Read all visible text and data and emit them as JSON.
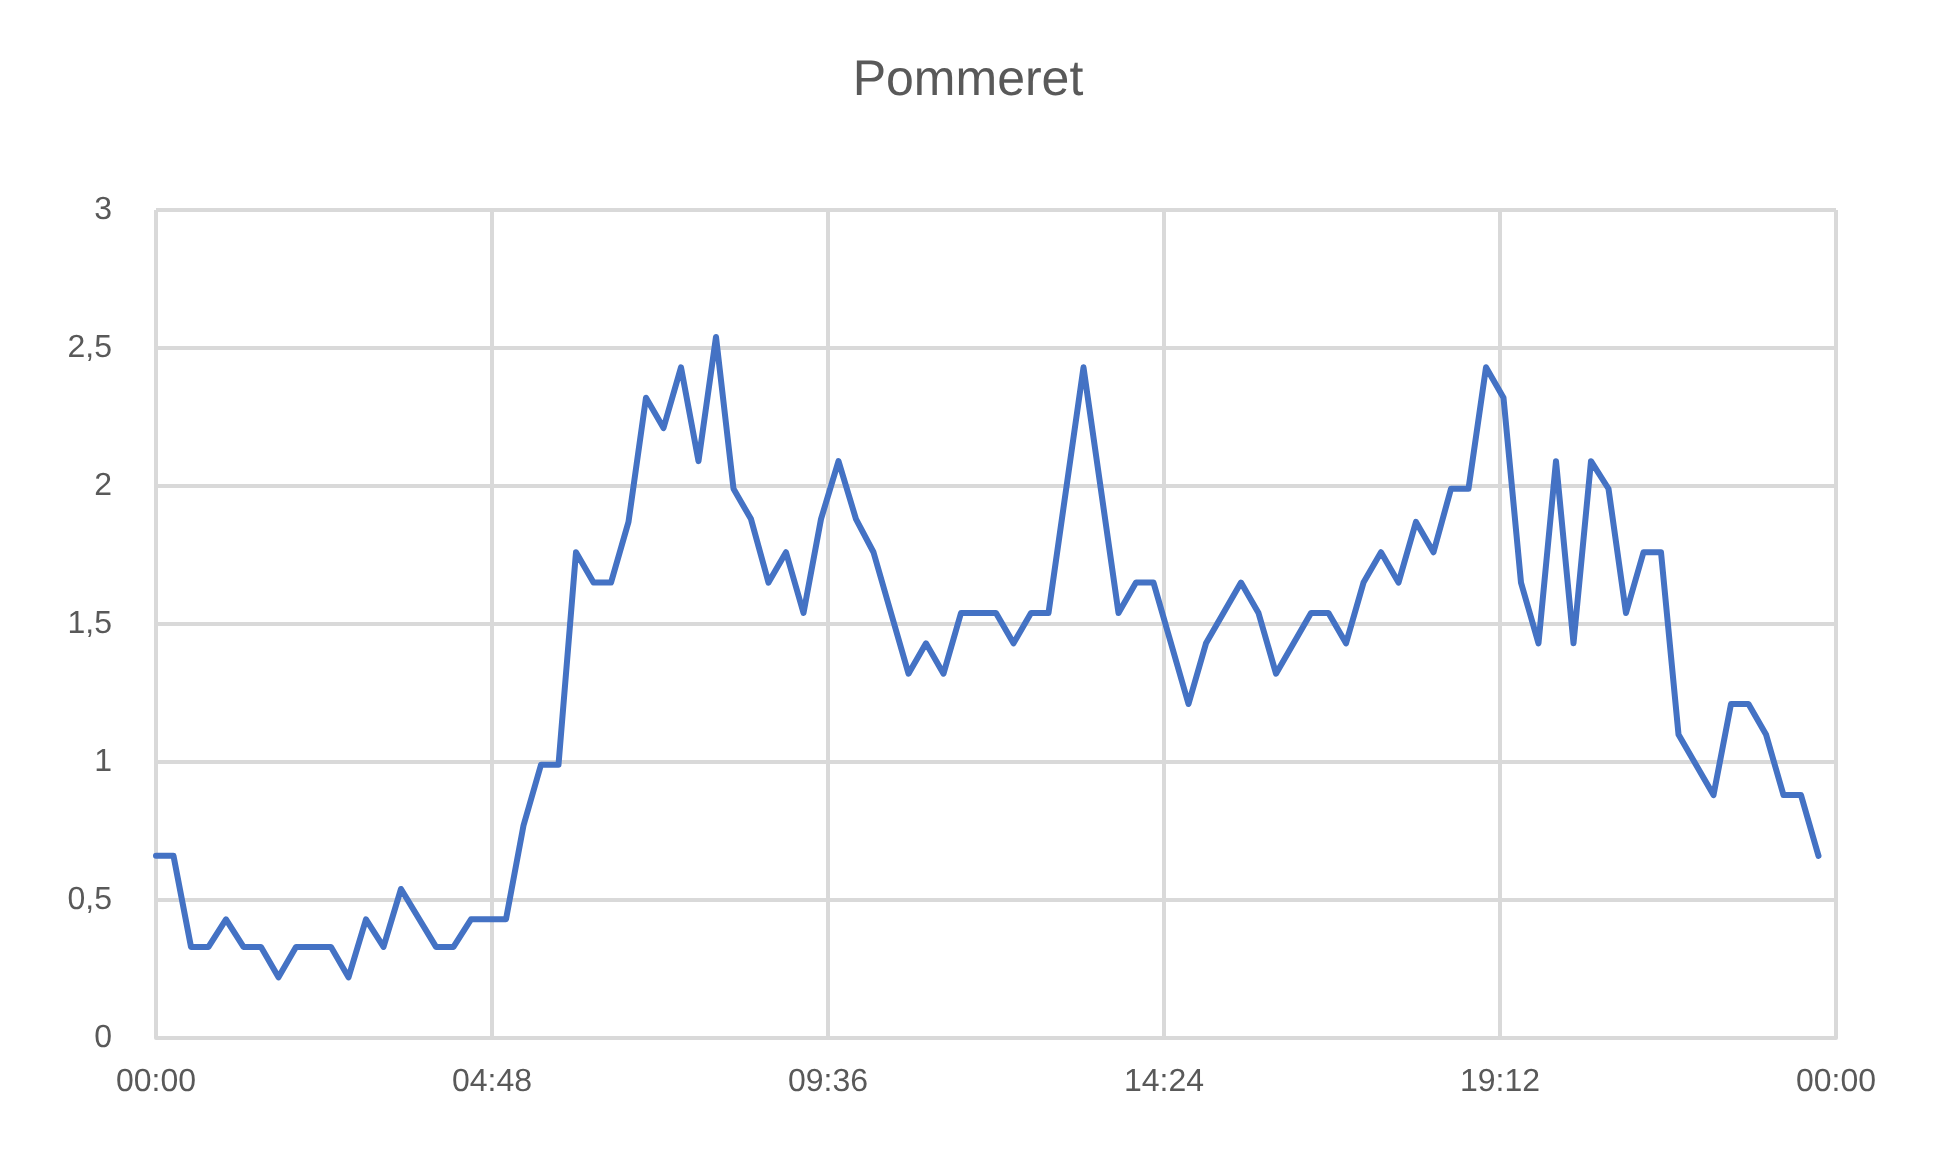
{
  "chart_data": {
    "type": "line",
    "title": "Pommeret",
    "x": [
      0,
      0.25,
      0.5,
      0.75,
      1,
      1.25,
      1.5,
      1.75,
      2,
      2.5,
      2.75,
      3,
      3.25,
      3.5,
      4,
      4.25,
      4.5,
      5,
      5.25,
      5.5,
      5.75,
      6,
      6.25,
      6.5,
      6.75,
      7,
      7.25,
      7.5,
      7.75,
      8,
      8.25,
      8.5,
      8.75,
      9,
      9.25,
      9.5,
      9.75,
      10,
      10.25,
      10.5,
      10.75,
      11,
      11.25,
      11.5,
      12,
      12.25,
      12.5,
      12.75,
      13.25,
      13.75,
      14,
      14.25,
      14.75,
      15,
      15.5,
      15.75,
      16,
      16.5,
      16.75,
      17,
      17.25,
      17.5,
      17.75,
      18,
      18.25,
      18.5,
      18.75,
      19,
      19.25,
      19.5,
      19.75,
      20,
      20.25,
      20.5,
      20.75,
      21,
      21.25,
      21.5,
      21.75,
      22.25,
      22.5,
      22.75,
      23,
      23.25,
      23.5,
      23.75
    ],
    "series": [
      {
        "color": "#4472c4",
        "values": [
          0.66,
          0.66,
          0.33,
          0.33,
          0.43,
          0.33,
          0.33,
          0.22,
          0.33,
          0.33,
          0.22,
          0.43,
          0.33,
          0.54,
          0.33,
          0.33,
          0.43,
          0.43,
          0.77,
          0.99,
          0.99,
          1.76,
          1.65,
          1.65,
          1.87,
          2.32,
          2.21,
          2.43,
          2.09,
          2.54,
          1.99,
          1.88,
          1.65,
          1.76,
          1.54,
          1.88,
          2.09,
          1.88,
          1.76,
          1.54,
          1.32,
          1.43,
          1.32,
          1.54,
          1.54,
          1.43,
          1.54,
          1.54,
          2.43,
          1.54,
          1.65,
          1.65,
          1.21,
          1.43,
          1.65,
          1.54,
          1.32,
          1.54,
          1.54,
          1.43,
          1.65,
          1.76,
          1.65,
          1.87,
          1.76,
          1.99,
          1.99,
          2.43,
          2.32,
          1.65,
          1.43,
          2.09,
          1.43,
          2.09,
          1.99,
          1.54,
          1.76,
          1.76,
          1.1,
          0.88,
          1.21,
          1.21,
          1.1,
          0.88,
          0.88,
          0.66
        ]
      }
    ],
    "xlim": [
      0,
      24
    ],
    "xticks": [
      {
        "value": 0,
        "label": "00:00"
      },
      {
        "value": 4.8,
        "label": "04:48"
      },
      {
        "value": 9.6,
        "label": "09:36"
      },
      {
        "value": 14.4,
        "label": "14:24"
      },
      {
        "value": 19.2,
        "label": "19:12"
      },
      {
        "value": 24,
        "label": "00:00"
      }
    ],
    "ylim": [
      0,
      3
    ],
    "yticks": [
      0,
      {
        "value": 0.5,
        "label": "0,5"
      },
      1,
      {
        "value": 1.5,
        "label": "1,5"
      },
      2,
      {
        "value": 2.5,
        "label": "2,5"
      },
      3
    ],
    "grid": true,
    "marker": "none",
    "line_style": "solid"
  }
}
